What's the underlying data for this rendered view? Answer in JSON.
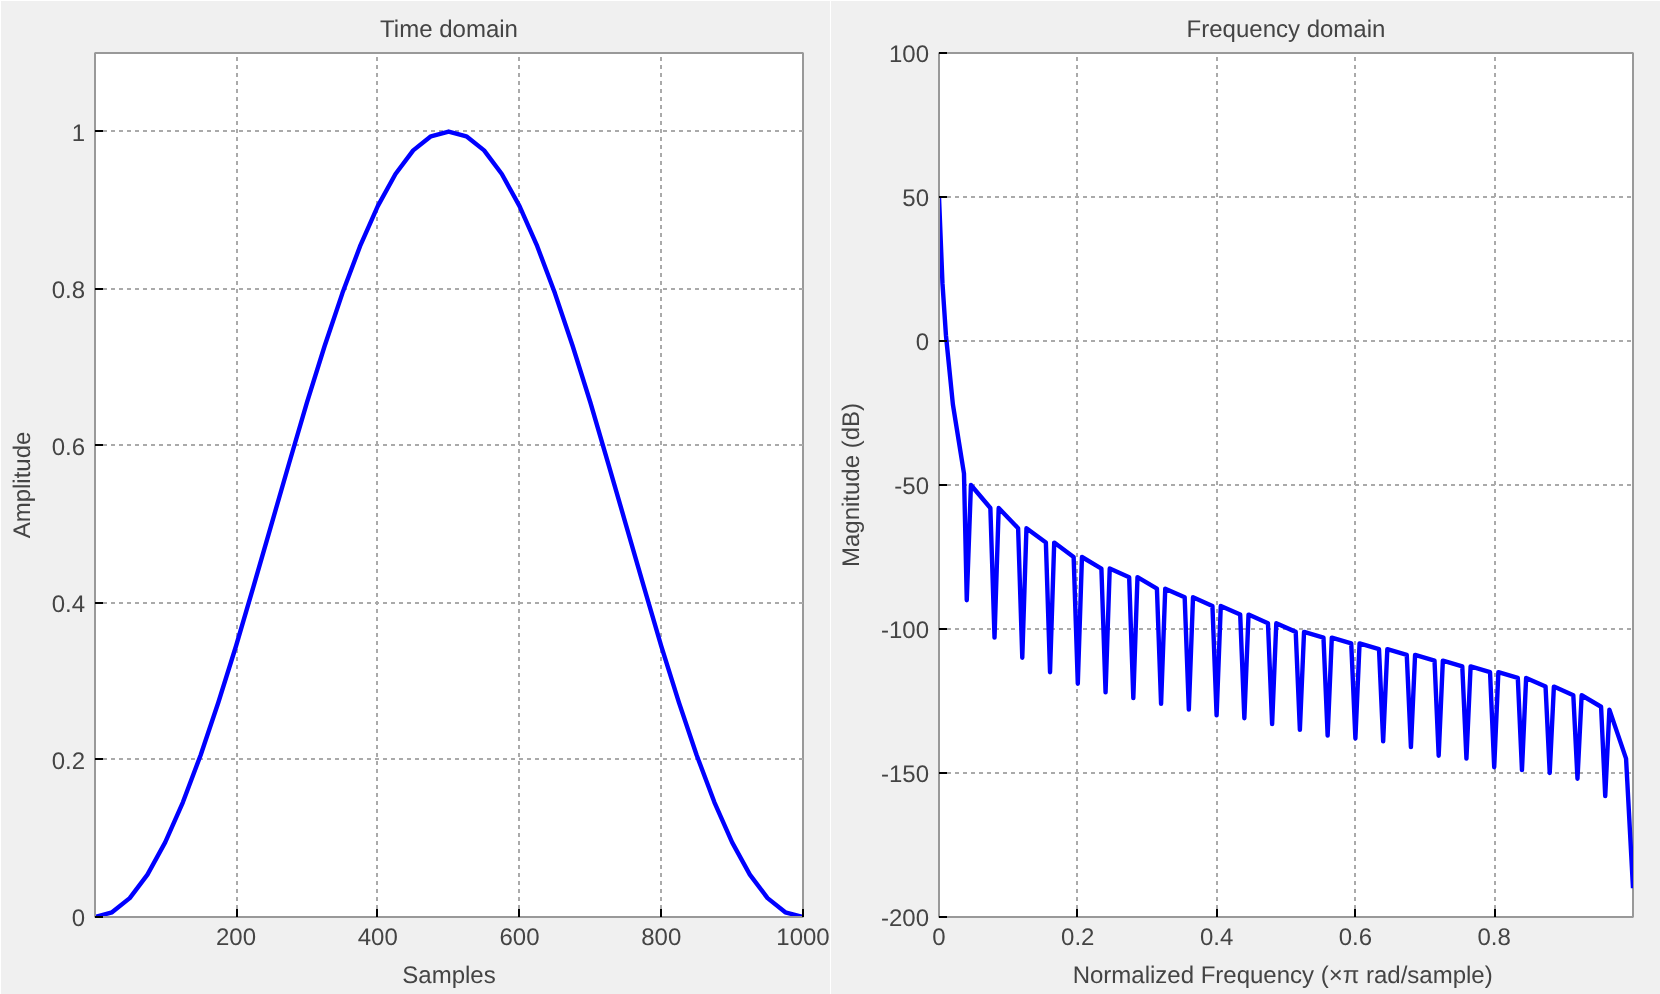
{
  "chart_data": [
    {
      "type": "line",
      "title": "Time domain",
      "xlabel": "Samples",
      "ylabel": "Amplitude",
      "xlim": [
        1,
        1000
      ],
      "ylim": [
        0,
        1.1
      ],
      "xticks": [
        200,
        400,
        600,
        800,
        1000
      ],
      "yticks": [
        0,
        0.2,
        0.4,
        0.6,
        0.8,
        1
      ],
      "grid": true,
      "series": [
        {
          "color": "#0000ff",
          "x": [
            1,
            25,
            50,
            75,
            100,
            125,
            150,
            175,
            200,
            225,
            250,
            275,
            300,
            325,
            350,
            375,
            400,
            425,
            450,
            475,
            500,
            525,
            550,
            575,
            600,
            625,
            650,
            675,
            700,
            725,
            750,
            775,
            800,
            825,
            850,
            875,
            900,
            925,
            950,
            975,
            1000
          ],
          "values": [
            0,
            0.006,
            0.024,
            0.054,
            0.095,
            0.146,
            0.206,
            0.273,
            0.345,
            0.422,
            0.5,
            0.578,
            0.655,
            0.727,
            0.794,
            0.854,
            0.905,
            0.946,
            0.976,
            0.994,
            1,
            0.994,
            0.976,
            0.946,
            0.905,
            0.854,
            0.794,
            0.727,
            0.655,
            0.578,
            0.5,
            0.422,
            0.345,
            0.273,
            0.206,
            0.146,
            0.095,
            0.054,
            0.024,
            0.006,
            0
          ]
        }
      ]
    },
    {
      "type": "line",
      "title": "Frequency domain",
      "xlabel": "Normalized Frequency  (×π rad/sample)",
      "ylabel": "Magnitude (dB)",
      "xlim": [
        0,
        1
      ],
      "ylim": [
        -200,
        100
      ],
      "xticks": [
        0,
        0.2,
        0.4,
        0.6,
        0.8
      ],
      "yticks": [
        -200,
        -150,
        -100,
        -50,
        0,
        50,
        100
      ],
      "grid": true,
      "series": [
        {
          "color": "#0000ff",
          "x": [
            0,
            0.005,
            0.01,
            0.02,
            0.03,
            0.036,
            0.04,
            0.046,
            0.074,
            0.08,
            0.086,
            0.114,
            0.12,
            0.126,
            0.154,
            0.16,
            0.166,
            0.194,
            0.2,
            0.206,
            0.234,
            0.24,
            0.246,
            0.274,
            0.28,
            0.286,
            0.314,
            0.32,
            0.326,
            0.354,
            0.36,
            0.366,
            0.394,
            0.4,
            0.406,
            0.434,
            0.44,
            0.446,
            0.474,
            0.48,
            0.486,
            0.514,
            0.52,
            0.526,
            0.554,
            0.56,
            0.566,
            0.594,
            0.6,
            0.606,
            0.634,
            0.64,
            0.646,
            0.674,
            0.68,
            0.686,
            0.714,
            0.72,
            0.726,
            0.754,
            0.76,
            0.766,
            0.794,
            0.8,
            0.806,
            0.834,
            0.84,
            0.846,
            0.874,
            0.88,
            0.886,
            0.914,
            0.92,
            0.926,
            0.954,
            0.96,
            0.966,
            0.99,
            1.0
          ],
          "values": [
            50,
            20,
            2,
            -22,
            -37,
            -46,
            -90,
            -50,
            -58,
            -103,
            -58,
            -65,
            -110,
            -65,
            -70,
            -115,
            -70,
            -75,
            -119,
            -75,
            -79,
            -122,
            -79,
            -82,
            -124,
            -82,
            -86,
            -126,
            -86,
            -89,
            -128,
            -89,
            -92,
            -130,
            -92,
            -95,
            -131,
            -95,
            -98,
            -133,
            -98,
            -101,
            -135,
            -101,
            -103,
            -137,
            -103,
            -105,
            -138,
            -105,
            -107,
            -139,
            -107,
            -109,
            -141,
            -109,
            -111,
            -144,
            -111,
            -113,
            -145,
            -113,
            -115,
            -148,
            -115,
            -117,
            -149,
            -117,
            -120,
            -150,
            -120,
            -123,
            -152,
            -123,
            -127,
            -158,
            -128,
            -145,
            -190
          ]
        }
      ]
    }
  ]
}
